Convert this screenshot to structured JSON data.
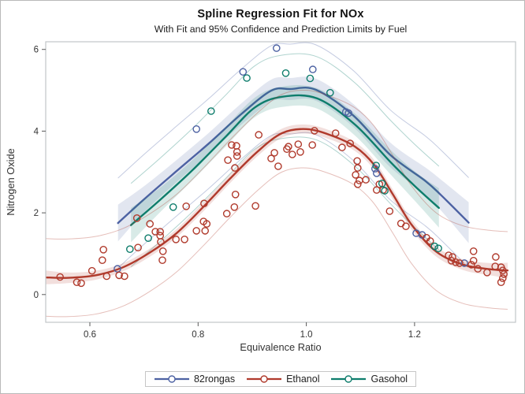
{
  "figure": {
    "title": "Spline Regression Fit for NOx",
    "subtitle": "With Fit and 95% Confidence and Prediction Limits by Fuel",
    "background": "#ffffff",
    "border_color": "#b9b9b9"
  },
  "axes": {
    "x": {
      "label": "Equivalence Ratio",
      "tick_labels": [
        "0.6",
        "0.8",
        "1.0",
        "1.2"
      ],
      "ticks": [
        0.6,
        0.8,
        1.0,
        1.2
      ],
      "min": 0.518,
      "max": 1.387
    },
    "y": {
      "label": "Nitrogen Oxide",
      "tick_labels": [
        "0",
        "2",
        "4",
        "6"
      ],
      "ticks": [
        0,
        2,
        4,
        6
      ],
      "min": -0.68,
      "max": 6.19
    },
    "frame_color": "#c2c6c9",
    "tick_color": "#5a5a5a",
    "label_color": "#333333"
  },
  "legend": {
    "border_color": "#c6c6c6",
    "items": [
      {
        "label": "82rongas",
        "color": "#4D62A3"
      },
      {
        "label": "Ethanol",
        "color": "#B03A2C"
      },
      {
        "label": "Gasohol",
        "color": "#0E7D6C"
      }
    ]
  },
  "chart_data": {
    "type": "line",
    "title": "Spline Regression Fit for NOx",
    "subtitle": "With Fit and 95% Confidence and Prediction Limits by Fuel",
    "xlabel": "Equivalence Ratio",
    "ylabel": "Nitrogen Oxide",
    "xlim": [
      0.518,
      1.387
    ],
    "ylim": [
      -0.68,
      6.19
    ],
    "grid": false,
    "legend_position": "bottom-center",
    "series": [
      {
        "name": "82rongas",
        "color": "#4D62A3",
        "conf_pred_note": "95% confidence band and prediction limits around spline fit",
        "pred_hw": 1.1,
        "conf_hw": [
          0.45,
          0.32,
          0.27,
          0.26,
          0.26,
          0.27,
          0.27,
          0.27,
          0.28,
          0.3,
          0.33,
          0.38,
          0.5
        ],
        "fit": [
          [
            0.652,
            1.75
          ],
          [
            0.7,
            2.33
          ],
          [
            0.76,
            3.02
          ],
          [
            0.82,
            3.7
          ],
          [
            0.88,
            4.42
          ],
          [
            0.935,
            4.99
          ],
          [
            0.97,
            5.03
          ],
          [
            1.018,
            5.01
          ],
          [
            1.087,
            4.38
          ],
          [
            1.155,
            3.42
          ],
          [
            1.22,
            2.78
          ],
          [
            1.25,
            2.42
          ],
          [
            1.3,
            1.76
          ]
        ],
        "points": [
          [
            0.651,
            0.63
          ],
          [
            0.797,
            4.05
          ],
          [
            0.883,
            5.45
          ],
          [
            0.945,
            6.03
          ],
          [
            1.012,
            5.51
          ],
          [
            1.073,
            4.47
          ],
          [
            1.078,
            4.44
          ],
          [
            1.127,
            3.08
          ],
          [
            1.13,
            2.97
          ],
          [
            1.203,
            1.5
          ],
          [
            1.214,
            1.46
          ],
          [
            1.292,
            0.77
          ]
        ]
      },
      {
        "name": "Gasohol",
        "color": "#0E7D6C",
        "conf_pred_note": "95% confidence band and prediction limits around spline fit",
        "pred_hw": 1.02,
        "conf_hw": [
          0.42,
          0.3,
          0.25,
          0.24,
          0.24,
          0.25,
          0.25,
          0.27,
          0.3,
          0.36,
          0.48
        ],
        "fit": [
          [
            0.676,
            1.7
          ],
          [
            0.73,
            2.32
          ],
          [
            0.79,
            3.05
          ],
          [
            0.85,
            3.85
          ],
          [
            0.905,
            4.58
          ],
          [
            0.955,
            4.84
          ],
          [
            1.02,
            4.8
          ],
          [
            1.09,
            4.16
          ],
          [
            1.155,
            3.25
          ],
          [
            1.2,
            2.66
          ],
          [
            1.245,
            2.12
          ]
        ],
        "points": [
          [
            0.674,
            1.11
          ],
          [
            0.708,
            1.38
          ],
          [
            0.754,
            2.14
          ],
          [
            0.824,
            4.49
          ],
          [
            0.89,
            5.3
          ],
          [
            0.962,
            5.42
          ],
          [
            1.007,
            5.29
          ],
          [
            1.044,
            4.94
          ],
          [
            1.129,
            3.16
          ],
          [
            1.14,
            2.72
          ],
          [
            1.145,
            2.54
          ],
          [
            1.237,
            1.18
          ],
          [
            1.244,
            1.13
          ]
        ]
      },
      {
        "name": "Ethanol",
        "color": "#B03A2C",
        "conf_pred_note": "95% confidence band and prediction limits around spline fit",
        "pred_hw": 0.95,
        "conf_hw": [
          0.17,
          0.13,
          0.11,
          0.1,
          0.1,
          0.1,
          0.11,
          0.11,
          0.11,
          0.11,
          0.11,
          0.11,
          0.11,
          0.12,
          0.12,
          0.12,
          0.12,
          0.13,
          0.15,
          0.19
        ],
        "fit": [
          [
            0.518,
            0.42
          ],
          [
            0.56,
            0.41
          ],
          [
            0.61,
            0.47
          ],
          [
            0.66,
            0.66
          ],
          [
            0.71,
            1.02
          ],
          [
            0.76,
            1.5
          ],
          [
            0.81,
            2.15
          ],
          [
            0.86,
            2.85
          ],
          [
            0.91,
            3.5
          ],
          [
            0.955,
            3.95
          ],
          [
            1.0,
            4.05
          ],
          [
            1.045,
            3.9
          ],
          [
            1.09,
            3.62
          ],
          [
            1.125,
            3.18
          ],
          [
            1.16,
            2.45
          ],
          [
            1.195,
            1.7
          ],
          [
            1.24,
            1.05
          ],
          [
            1.29,
            0.73
          ],
          [
            1.34,
            0.62
          ],
          [
            1.372,
            0.59
          ]
        ],
        "points": [
          [
            0.545,
            0.43
          ],
          [
            0.576,
            0.3
          ],
          [
            0.584,
            0.28
          ],
          [
            0.604,
            0.58
          ],
          [
            0.623,
            0.84
          ],
          [
            0.625,
            1.1
          ],
          [
            0.631,
            0.45
          ],
          [
            0.654,
            0.47
          ],
          [
            0.664,
            0.45
          ],
          [
            0.687,
            1.87
          ],
          [
            0.689,
            1.15
          ],
          [
            0.711,
            1.73
          ],
          [
            0.721,
            1.54
          ],
          [
            0.73,
            1.54
          ],
          [
            0.73,
            1.44
          ],
          [
            0.731,
            1.29
          ],
          [
            0.735,
            1.06
          ],
          [
            0.734,
            0.84
          ],
          [
            0.759,
            1.35
          ],
          [
            0.775,
            1.35
          ],
          [
            0.778,
            2.16
          ],
          [
            0.797,
            1.56
          ],
          [
            0.81,
            1.79
          ],
          [
            0.813,
            1.56
          ],
          [
            0.816,
            1.73
          ],
          [
            0.811,
            2.23
          ],
          [
            0.853,
            1.98
          ],
          [
            0.855,
            3.29
          ],
          [
            0.862,
            3.66
          ],
          [
            0.867,
            2.14
          ],
          [
            0.868,
            3.1
          ],
          [
            0.869,
            2.45
          ],
          [
            0.871,
            3.64
          ],
          [
            0.872,
            3.39
          ],
          [
            0.872,
            3.49
          ],
          [
            0.906,
            2.17
          ],
          [
            0.912,
            3.91
          ],
          [
            0.935,
            3.33
          ],
          [
            0.941,
            3.47
          ],
          [
            0.948,
            3.14
          ],
          [
            0.964,
            3.56
          ],
          [
            0.967,
            3.62
          ],
          [
            0.974,
            3.43
          ],
          [
            0.985,
            3.68
          ],
          [
            0.989,
            3.49
          ],
          [
            1.011,
            3.66
          ],
          [
            1.015,
            4.01
          ],
          [
            1.054,
            3.95
          ],
          [
            1.066,
            3.6
          ],
          [
            1.081,
            3.7
          ],
          [
            1.094,
            3.27
          ],
          [
            1.095,
            3.1
          ],
          [
            1.091,
            2.93
          ],
          [
            1.098,
            2.79
          ],
          [
            1.095,
            2.7
          ],
          [
            1.11,
            2.81
          ],
          [
            1.13,
            2.56
          ],
          [
            1.135,
            2.7
          ],
          [
            1.142,
            2.56
          ],
          [
            1.154,
            2.04
          ],
          [
            1.175,
            1.74
          ],
          [
            1.184,
            1.67
          ],
          [
            1.222,
            1.39
          ],
          [
            1.229,
            1.31
          ],
          [
            1.263,
            0.96
          ],
          [
            1.268,
            0.83
          ],
          [
            1.27,
            0.92
          ],
          [
            1.276,
            0.79
          ],
          [
            1.283,
            0.77
          ],
          [
            1.305,
            0.73
          ],
          [
            1.309,
            0.83
          ],
          [
            1.309,
            1.06
          ],
          [
            1.317,
            0.63
          ],
          [
            1.334,
            0.54
          ],
          [
            1.349,
            0.69
          ],
          [
            1.35,
            0.92
          ],
          [
            1.36,
            0.67
          ],
          [
            1.363,
            0.59
          ],
          [
            1.365,
            0.5
          ],
          [
            1.363,
            0.4
          ],
          [
            1.36,
            0.3
          ]
        ]
      }
    ]
  }
}
